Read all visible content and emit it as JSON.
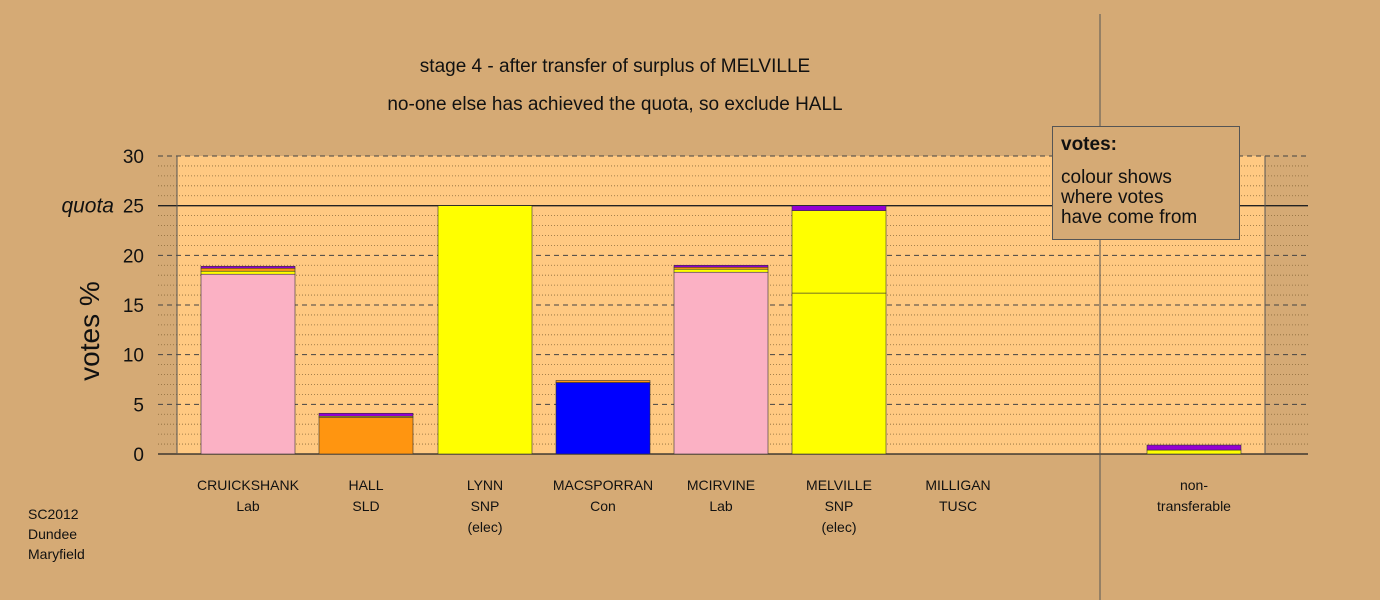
{
  "chart_data": {
    "type": "bar",
    "stacked": true,
    "title": "stage 4 - after transfer of surplus of MELVILLE",
    "subtitle": "no-one else has achieved the quota, so exclude HALL",
    "ylabel": "votes %",
    "ylim": [
      0,
      30
    ],
    "yticks": [
      0,
      5,
      10,
      15,
      20,
      25,
      30
    ],
    "quota": 25,
    "quota_label": "quota",
    "grid": true,
    "categories": [
      {
        "lines": [
          "CRUICKSHANK",
          "Lab"
        ]
      },
      {
        "lines": [
          "HALL",
          "SLD"
        ]
      },
      {
        "lines": [
          "LYNN",
          "SNP",
          "(elec)"
        ]
      },
      {
        "lines": [
          "MACSPORRAN",
          "Con"
        ]
      },
      {
        "lines": [
          "MCIRVINE",
          "Lab"
        ]
      },
      {
        "lines": [
          "MELVILLE",
          "SNP",
          "(elec)"
        ]
      },
      {
        "lines": [
          "MILLIGAN",
          "TUSC"
        ]
      },
      {
        "lines": [
          "non-",
          "transferable"
        ]
      }
    ],
    "stacks": [
      [
        {
          "value": 18.1,
          "color": "#FBB1C4"
        },
        {
          "value": 0.3,
          "color": "#FFFF00"
        },
        {
          "value": 0.3,
          "color": "#FF9510"
        },
        {
          "value": 0.2,
          "color": "#9400D3"
        }
      ],
      [
        {
          "value": 3.7,
          "color": "#FF9510"
        },
        {
          "value": 0.1,
          "color": "#FFFF00"
        },
        {
          "value": 0.3,
          "color": "#9400D3"
        }
      ],
      [
        {
          "value": 25.0,
          "color": "#FFFF00"
        }
      ],
      [
        {
          "value": 7.2,
          "color": "#0000FF"
        },
        {
          "value": 0.2,
          "color": "#FF9510"
        }
      ],
      [
        {
          "value": 18.3,
          "color": "#FBB1C4"
        },
        {
          "value": 0.3,
          "color": "#FFFF00"
        },
        {
          "value": 0.2,
          "color": "#FF9510"
        },
        {
          "value": 0.2,
          "color": "#9400D3"
        }
      ],
      [
        {
          "value": 16.2,
          "color": "#FFFF00"
        },
        {
          "value": 8.3,
          "color": "#FFFF00"
        },
        {
          "value": 0.5,
          "color": "#9400D3"
        }
      ],
      [],
      [
        {
          "value": 0.4,
          "color": "#FFFF00"
        },
        {
          "value": 0.5,
          "color": "#9400D3"
        }
      ]
    ],
    "colors": {
      "background": "#D5AA75",
      "plot_area": "#FFC982",
      "Lab": "#FBB1C4",
      "SLD": "#FF9510",
      "SNP": "#FFFF00",
      "Con": "#0000FF",
      "TUSC": "#9400D3"
    }
  },
  "legend": {
    "title": "votes:",
    "lines": [
      "colour shows",
      "where votes",
      "have come from"
    ]
  },
  "source": [
    "SC2012",
    "Dundee",
    "Maryfield"
  ]
}
